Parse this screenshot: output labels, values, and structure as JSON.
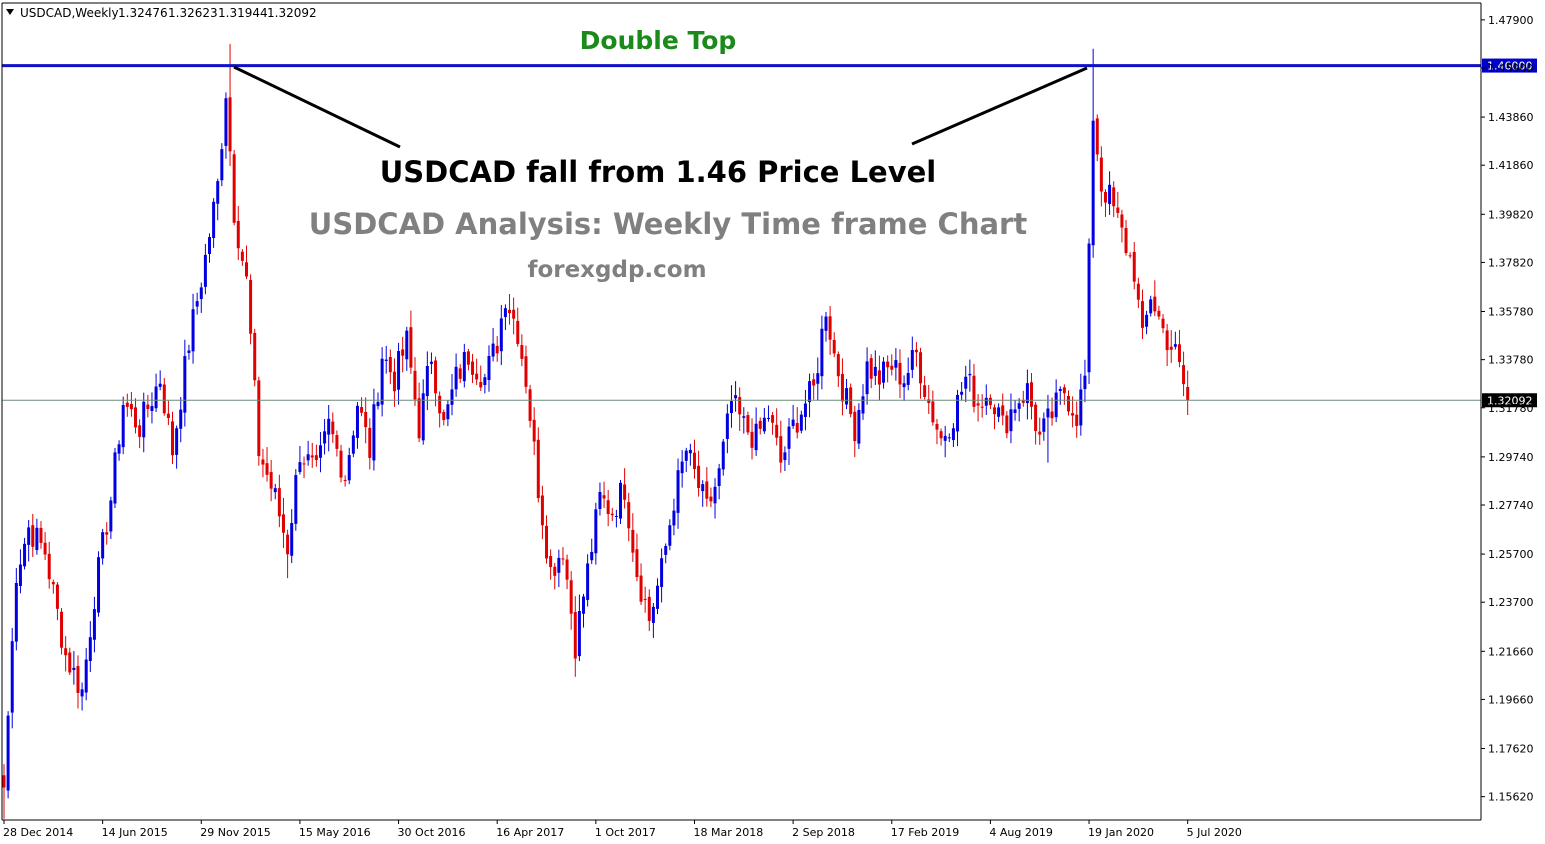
{
  "header": {
    "symbol_label": "USDCAD,Weekly",
    "ohlc": [
      "1.32476",
      "1.32623",
      "1.31944",
      "1.32092"
    ]
  },
  "annotations": {
    "double_top": "Double Top",
    "headline": "USDCAD fall from 1.46 Price Level",
    "subtitle": "USDCAD Analysis: Weekly Time frame Chart",
    "site": "forexgdp.com"
  },
  "colors": {
    "bull": "#0000e0",
    "bear": "#e00000",
    "resistance": "#1010c8",
    "current_line": "#6d8c78",
    "axis": "#000000",
    "background": "#ffffff"
  },
  "chart_data": {
    "type": "candlestick",
    "symbol": "USDCAD",
    "timeframe": "Weekly",
    "ylim": [
      1.1465,
      1.486
    ],
    "y_ticks": [
      "1.47900",
      "1.45900",
      "1.43860",
      "1.41860",
      "1.39820",
      "1.37820",
      "1.35780",
      "1.33780",
      "1.31780",
      "1.29740",
      "1.27740",
      "1.25700",
      "1.23700",
      "1.21660",
      "1.19660",
      "1.17620",
      "1.15620"
    ],
    "x_ticks": [
      {
        "index": 0,
        "label": "28 Dec 2014"
      },
      {
        "index": 24,
        "label": "14 Jun 2015"
      },
      {
        "index": 48,
        "label": "29 Nov 2015"
      },
      {
        "index": 72,
        "label": "15 May 2016"
      },
      {
        "index": 96,
        "label": "30 Oct 2016"
      },
      {
        "index": 120,
        "label": "16 Apr 2017"
      },
      {
        "index": 144,
        "label": "1 Oct 2017"
      },
      {
        "index": 168,
        "label": "18 Mar 2018"
      },
      {
        "index": 192,
        "label": "2 Sep 2018"
      },
      {
        "index": 216,
        "label": "17 Feb 2019"
      },
      {
        "index": 240,
        "label": "4 Aug 2019"
      },
      {
        "index": 264,
        "label": "19 Jan 2020"
      },
      {
        "index": 288,
        "label": "5 Jul 2020"
      }
    ],
    "levels": [
      {
        "value": 1.46,
        "label": "1.46000",
        "style": "resistance"
      },
      {
        "value": 1.32092,
        "label": "1.32092",
        "style": "current"
      }
    ],
    "close_waypoints": [
      [
        0,
        1.16
      ],
      [
        3,
        1.25
      ],
      [
        6,
        1.268
      ],
      [
        10,
        1.258
      ],
      [
        15,
        1.215
      ],
      [
        19,
        1.2
      ],
      [
        22,
        1.24
      ],
      [
        26,
        1.28
      ],
      [
        29,
        1.32
      ],
      [
        33,
        1.31
      ],
      [
        38,
        1.33
      ],
      [
        41,
        1.3
      ],
      [
        45,
        1.345
      ],
      [
        49,
        1.38
      ],
      [
        52,
        1.41
      ],
      [
        54,
        1.45
      ],
      [
        56,
        1.4
      ],
      [
        59,
        1.37
      ],
      [
        62,
        1.3
      ],
      [
        66,
        1.28
      ],
      [
        69,
        1.26
      ],
      [
        72,
        1.3
      ],
      [
        76,
        1.29
      ],
      [
        79,
        1.31
      ],
      [
        83,
        1.29
      ],
      [
        86,
        1.32
      ],
      [
        89,
        1.3
      ],
      [
        92,
        1.34
      ],
      [
        95,
        1.33
      ],
      [
        98,
        1.345
      ],
      [
        101,
        1.31
      ],
      [
        104,
        1.34
      ],
      [
        107,
        1.31
      ],
      [
        110,
        1.33
      ],
      [
        113,
        1.34
      ],
      [
        117,
        1.33
      ],
      [
        120,
        1.345
      ],
      [
        122,
        1.365
      ],
      [
        125,
        1.35
      ],
      [
        127,
        1.33
      ],
      [
        130,
        1.285
      ],
      [
        133,
        1.25
      ],
      [
        136,
        1.26
      ],
      [
        139,
        1.22
      ],
      [
        142,
        1.25
      ],
      [
        145,
        1.28
      ],
      [
        148,
        1.275
      ],
      [
        151,
        1.285
      ],
      [
        154,
        1.25
      ],
      [
        157,
        1.23
      ],
      [
        160,
        1.25
      ],
      [
        163,
        1.28
      ],
      [
        166,
        1.3
      ],
      [
        168,
        1.29
      ],
      [
        171,
        1.275
      ],
      [
        174,
        1.29
      ],
      [
        177,
        1.32
      ],
      [
        180,
        1.31
      ],
      [
        183,
        1.305
      ],
      [
        186,
        1.315
      ],
      [
        189,
        1.295
      ],
      [
        192,
        1.31
      ],
      [
        195,
        1.32
      ],
      [
        197,
        1.325
      ],
      [
        200,
        1.36
      ],
      [
        202,
        1.34
      ],
      [
        205,
        1.32
      ],
      [
        207,
        1.31
      ],
      [
        210,
        1.335
      ],
      [
        213,
        1.33
      ],
      [
        216,
        1.335
      ],
      [
        219,
        1.33
      ],
      [
        222,
        1.34
      ],
      [
        225,
        1.32
      ],
      [
        228,
        1.305
      ],
      [
        231,
        1.315
      ],
      [
        234,
        1.33
      ],
      [
        237,
        1.32
      ],
      [
        240,
        1.325
      ],
      [
        243,
        1.31
      ],
      [
        246,
        1.32
      ],
      [
        249,
        1.325
      ],
      [
        252,
        1.305
      ],
      [
        255,
        1.315
      ],
      [
        258,
        1.325
      ],
      [
        261,
        1.315
      ],
      [
        263,
        1.33
      ],
      [
        264,
        1.38
      ],
      [
        265,
        1.44
      ],
      [
        267,
        1.41
      ],
      [
        269,
        1.405
      ],
      [
        272,
        1.39
      ],
      [
        275,
        1.375
      ],
      [
        277,
        1.345
      ],
      [
        279,
        1.365
      ],
      [
        282,
        1.35
      ],
      [
        285,
        1.34
      ],
      [
        288,
        1.3209
      ]
    ],
    "peaks": [
      {
        "index": 55,
        "high": 1.469
      },
      {
        "index": 265,
        "high": 1.467
      }
    ],
    "troughs": [
      {
        "index": 0,
        "low": 1.147
      },
      {
        "index": 19,
        "low": 1.192
      },
      {
        "index": 69,
        "low": 1.247
      },
      {
        "index": 139,
        "low": 1.206
      },
      {
        "index": 157,
        "low": 1.225
      },
      {
        "index": 254,
        "low": 1.295
      }
    ],
    "last_close": 1.32092
  }
}
